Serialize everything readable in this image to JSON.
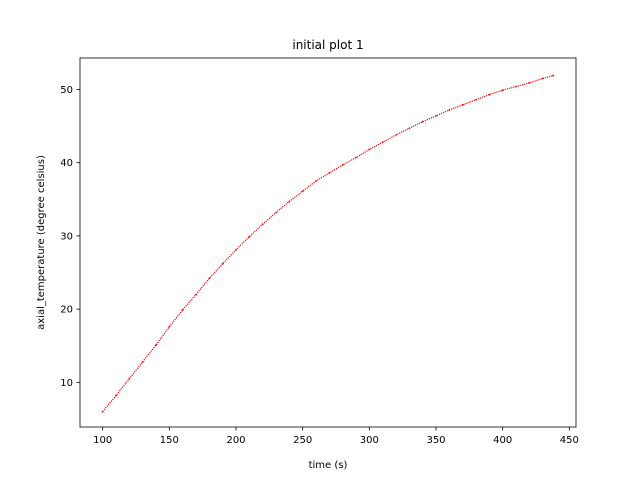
{
  "chart_data": {
    "type": "line",
    "title": "initial plot 1",
    "xlabel": "time (s)",
    "ylabel": "axial_temperature (degree celsius)",
    "xlim": [
      83,
      455
    ],
    "ylim": [
      3.9,
      54.3
    ],
    "xticks": [
      100,
      150,
      200,
      250,
      300,
      350,
      400,
      450
    ],
    "yticks": [
      10,
      20,
      30,
      40,
      50
    ],
    "grid": false,
    "legend": "none",
    "series": [
      {
        "color": "#ff0000",
        "marker": "dot",
        "x": [
          100,
          110,
          120,
          130,
          140,
          150,
          160,
          170,
          180,
          190,
          200,
          210,
          220,
          230,
          240,
          250,
          260,
          270,
          280,
          290,
          300,
          310,
          320,
          330,
          340,
          350,
          360,
          370,
          380,
          390,
          400,
          410,
          420,
          430,
          438
        ],
        "y": [
          6.0,
          8.2,
          10.5,
          12.8,
          15.1,
          17.6,
          19.9,
          22.0,
          24.2,
          26.2,
          28.1,
          29.9,
          31.6,
          33.2,
          34.7,
          36.1,
          37.5,
          38.6,
          39.7,
          40.7,
          41.8,
          42.8,
          43.8,
          44.7,
          45.6,
          46.4,
          47.2,
          47.9,
          48.6,
          49.3,
          49.9,
          50.4,
          50.9,
          51.5,
          51.9
        ]
      }
    ]
  }
}
